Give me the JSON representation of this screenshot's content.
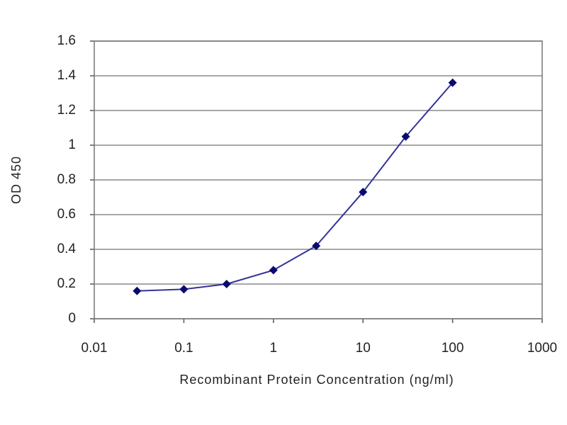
{
  "chart_data": {
    "type": "line",
    "xlabel": "Recombinant Protein Concentration (ng/ml)",
    "ylabel": "OD 450",
    "x": [
      0.03,
      0.1,
      0.3,
      1,
      3,
      10,
      30,
      100
    ],
    "values": [
      0.16,
      0.17,
      0.2,
      0.28,
      0.42,
      0.73,
      1.05,
      1.36
    ],
    "color": "#33339a",
    "marker_color": "#0a0a6e",
    "xscale": "log",
    "xlim": [
      0.01,
      1000
    ],
    "xticks": [
      0.01,
      0.1,
      1,
      10,
      100,
      1000
    ],
    "ylim": [
      0,
      1.6
    ],
    "yticks": [
      0,
      0.2,
      0.4,
      0.6,
      0.8,
      1,
      1.2,
      1.4,
      1.6
    ],
    "grid": true
  }
}
